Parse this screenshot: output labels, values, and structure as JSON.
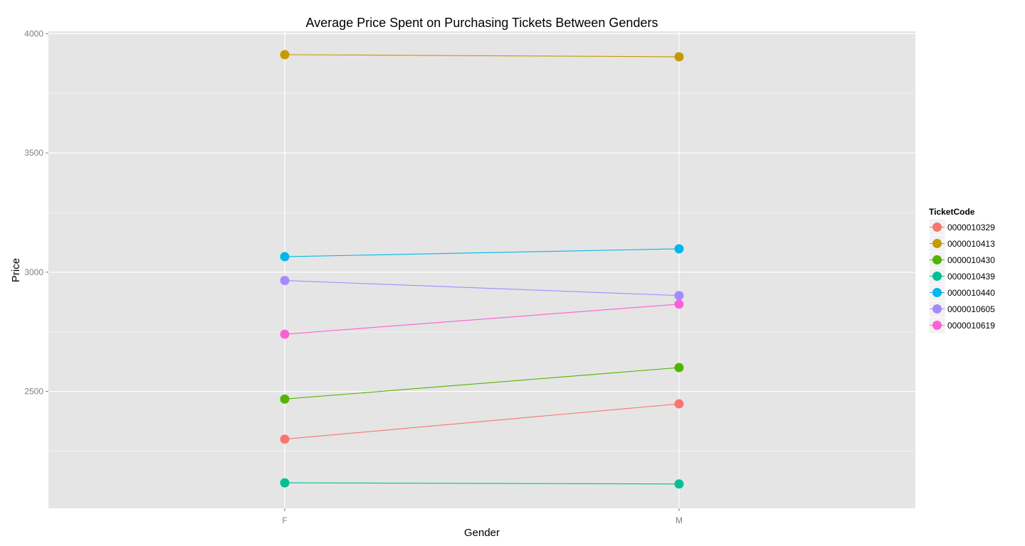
{
  "chart_data": {
    "type": "line",
    "title": "Average Price Spent on Purchasing Tickets Between Genders",
    "xlabel": "Gender",
    "ylabel": "Price",
    "categories": [
      "F",
      "M"
    ],
    "ylim": [
      2010,
      4010
    ],
    "yticks": [
      2500,
      3000,
      3500,
      4000
    ],
    "grid": true,
    "legend": {
      "title": "TicketCode",
      "position": "right"
    },
    "series": [
      {
        "name": "0000010329",
        "color": "#F8766D",
        "values": [
          2300,
          2448
        ]
      },
      {
        "name": "0000010413",
        "color": "#C49A00",
        "values": [
          3912,
          3903
        ]
      },
      {
        "name": "0000010430",
        "color": "#53B400",
        "values": [
          2468,
          2600
        ]
      },
      {
        "name": "0000010439",
        "color": "#00C094",
        "values": [
          2117,
          2112
        ]
      },
      {
        "name": "0000010440",
        "color": "#00B6EB",
        "values": [
          3065,
          3098
        ]
      },
      {
        "name": "0000010605",
        "color": "#A58AFF",
        "values": [
          2965,
          2902
        ]
      },
      {
        "name": "0000010619",
        "color": "#FB61D7",
        "values": [
          2740,
          2866
        ]
      }
    ]
  }
}
